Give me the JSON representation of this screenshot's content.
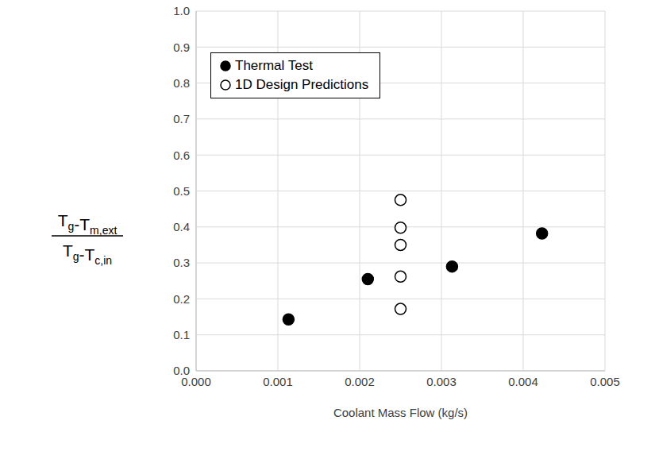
{
  "chart_data": {
    "type": "scatter",
    "x_label": "Coolant Mass Flow (kg/s)",
    "y_label": {
      "numerator": "Tg-Tm,ext",
      "denominator": "Tg-Tc,in"
    },
    "xlim": [
      0,
      0.005
    ],
    "xticks": [
      {
        "value": 0,
        "label": "0.000"
      },
      {
        "value": 0.001,
        "label": "0.001"
      },
      {
        "value": 0.002,
        "label": "0.002"
      },
      {
        "value": 0.003,
        "label": "0.003"
      },
      {
        "value": 0.004,
        "label": "0.004"
      },
      {
        "value": 0.005,
        "label": "0.005"
      }
    ],
    "ylim": [
      0,
      1
    ],
    "yticks": [
      {
        "value": 0,
        "label": "0.0"
      },
      0.1,
      0.2,
      0.3,
      0.4,
      0.5,
      0.6,
      0.7,
      0.8,
      0.9,
      {
        "value": 1,
        "label": "1.0"
      }
    ],
    "grid": true,
    "legend": "upper left",
    "series": [
      {
        "name": "Thermal Test",
        "color": "#000000",
        "marker": "circle",
        "x": [
          0.00113,
          0.0021,
          0.00313,
          0.00423
        ],
        "values": [
          0.143,
          0.255,
          0.29,
          0.382
        ]
      },
      {
        "name": "1D Design Predictions",
        "color": "#000000",
        "marker": "open_circle",
        "x": [
          0.0025,
          0.0025,
          0.0025,
          0.0025,
          0.0025
        ],
        "values": [
          0.475,
          0.398,
          0.35,
          0.262,
          0.172
        ]
      }
    ]
  }
}
